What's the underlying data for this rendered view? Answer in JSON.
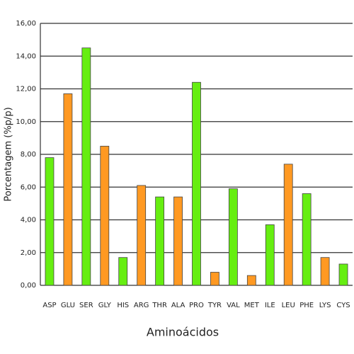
{
  "chart_data": {
    "type": "bar",
    "x_label": "Aminoácidos",
    "y_label": "Porcentagem (%p/p)",
    "categories": [
      "ASP",
      "GLU",
      "SER",
      "GLY",
      "HIS",
      "ARG",
      "THR",
      "ALA",
      "PRO",
      "TYR",
      "VAL",
      "MET",
      "ILE",
      "LEU",
      "PHE",
      "LYS",
      "CYS"
    ],
    "values": [
      7.8,
      11.7,
      14.5,
      8.5,
      1.7,
      6.1,
      5.4,
      5.4,
      12.4,
      0.8,
      5.9,
      0.6,
      3.7,
      7.4,
      5.6,
      1.7,
      1.3
    ],
    "colors": [
      "#66ee11",
      "#ff9922",
      "#66ee11",
      "#ff9922",
      "#66ee11",
      "#ff9922",
      "#66ee11",
      "#ff9922",
      "#66ee11",
      "#ff9922",
      "#66ee11",
      "#ff9922",
      "#66ee11",
      "#ff9922",
      "#66ee11",
      "#ff9922",
      "#66ee11"
    ],
    "ylim": [
      0,
      16
    ],
    "yticks": [
      {
        "value": 0,
        "label": "0,00"
      },
      {
        "value": 2,
        "label": "2,00"
      },
      {
        "value": 4,
        "label": "4,00"
      },
      {
        "value": 6,
        "label": "6,00"
      },
      {
        "value": 8,
        "label": "8,00"
      },
      {
        "value": 10,
        "label": "10,00"
      },
      {
        "value": 12,
        "label": "12,00"
      },
      {
        "value": 14,
        "label": "14,00"
      },
      {
        "value": 16,
        "label": "16,00"
      }
    ],
    "grid": true
  }
}
